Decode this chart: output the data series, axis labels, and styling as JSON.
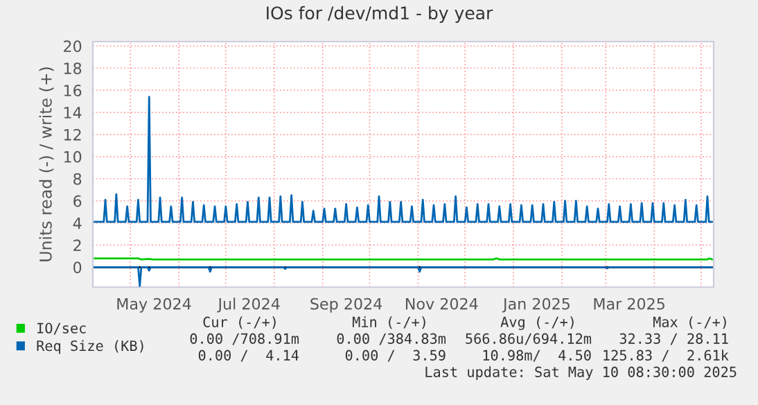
{
  "chart_data": {
    "type": "line",
    "title": "IOs for /dev/md1 - by year",
    "ylabel": "Units read (-) / write (+)",
    "xlim": [
      "2024-04-07",
      "2025-05-09"
    ],
    "ylim": [
      -1.8,
      20.4
    ],
    "yticks": [
      0,
      2,
      4,
      6,
      8,
      10,
      12,
      14,
      16,
      18,
      20
    ],
    "xticks": [
      {
        "value": "2024-05-01",
        "label": null
      },
      {
        "value": "2024-05-16",
        "label": "May 2024"
      },
      {
        "value": "2024-06-01",
        "label": null
      },
      {
        "value": "2024-07-01",
        "label": null
      },
      {
        "value": "2024-07-16",
        "label": "Jul 2024"
      },
      {
        "value": "2024-08-01",
        "label": null
      },
      {
        "value": "2024-09-01",
        "label": null
      },
      {
        "value": "2024-09-16",
        "label": "Sep 2024"
      },
      {
        "value": "2024-10-01",
        "label": null
      },
      {
        "value": "2024-11-01",
        "label": null
      },
      {
        "value": "2024-11-16",
        "label": "Nov 2024"
      },
      {
        "value": "2024-12-01",
        "label": null
      },
      {
        "value": "2025-01-01",
        "label": null
      },
      {
        "value": "2025-01-16",
        "label": "Jan 2025"
      },
      {
        "value": "2025-02-01",
        "label": null
      },
      {
        "value": "2025-03-01",
        "label": null
      },
      {
        "value": "2025-03-16",
        "label": "Mar 2025"
      },
      {
        "value": "2025-04-01",
        "label": null
      },
      {
        "value": "2025-05-01",
        "label": null
      }
    ],
    "grid": true,
    "legend": "bottom left",
    "marker": "none",
    "line_style": "solid",
    "ref_lines": [
      {
        "axis": "y",
        "value": 0,
        "color": "#000000"
      }
    ],
    "series": [
      {
        "color": "#0066b3",
        "x": [
          "2024-04-08",
          "2024-05-06",
          "2024-05-07",
          "2024-05-08",
          "2024-05-12",
          "2024-05-13",
          "2024-05-14",
          "2024-06-20",
          "2024-06-21",
          "2024-06-22",
          "2024-08-07",
          "2024-08-08",
          "2024-08-09",
          "2024-11-01",
          "2024-11-02",
          "2024-11-03",
          "2025-03-01",
          "2025-03-02",
          "2025-03-03",
          "2025-05-08"
        ],
        "values": [
          0,
          0,
          -1.7,
          0,
          0,
          -0.3,
          0,
          0,
          -0.4,
          0,
          0,
          -0.15,
          0,
          0,
          -0.4,
          0,
          0,
          -0.1,
          0,
          0
        ]
      },
      {
        "name": "IO/sec",
        "color": "#00cc00",
        "x": [
          "2024-04-08",
          "2024-05-06",
          "2024-05-08",
          "2024-05-13",
          "2024-05-15",
          "2024-12-19",
          "2024-12-21",
          "2024-12-23",
          "2025-05-05",
          "2025-05-06",
          "2025-05-08"
        ],
        "values": [
          0.8,
          0.8,
          0.7,
          0.75,
          0.7,
          0.7,
          0.8,
          0.7,
          0.7,
          0.8,
          0.7
        ]
      },
      {
        "name": "Req Size (KB)",
        "color": "#0066b3",
        "x": [
          "2024-04-08",
          "2024-04-14",
          "2024-04-15",
          "2024-04-16",
          "2024-04-21",
          "2024-04-22",
          "2024-04-23",
          "2024-04-28",
          "2024-04-29",
          "2024-04-30",
          "2024-05-05",
          "2024-05-06",
          "2024-05-07",
          "2024-05-12",
          "2024-05-13",
          "2024-05-14",
          "2024-05-19",
          "2024-05-20",
          "2024-05-21",
          "2024-05-26",
          "2024-05-27",
          "2024-05-28",
          "2024-06-02",
          "2024-06-03",
          "2024-06-04",
          "2024-06-09",
          "2024-06-10",
          "2024-06-11",
          "2024-06-16",
          "2024-06-17",
          "2024-06-18",
          "2024-06-23",
          "2024-06-24",
          "2024-06-25",
          "2024-06-30",
          "2024-07-01",
          "2024-07-02",
          "2024-07-07",
          "2024-07-08",
          "2024-07-09",
          "2024-07-14",
          "2024-07-15",
          "2024-07-16",
          "2024-07-21",
          "2024-07-22",
          "2024-07-23",
          "2024-07-28",
          "2024-07-29",
          "2024-07-30",
          "2024-08-04",
          "2024-08-05",
          "2024-08-06",
          "2024-08-11",
          "2024-08-12",
          "2024-08-13",
          "2024-08-18",
          "2024-08-19",
          "2024-08-20",
          "2024-08-25",
          "2024-08-26",
          "2024-08-27",
          "2024-09-01",
          "2024-09-02",
          "2024-09-03",
          "2024-09-08",
          "2024-09-09",
          "2024-09-10",
          "2024-09-15",
          "2024-09-16",
          "2024-09-17",
          "2024-09-22",
          "2024-09-23",
          "2024-09-24",
          "2024-09-29",
          "2024-09-30",
          "2024-10-01",
          "2024-10-06",
          "2024-10-07",
          "2024-10-08",
          "2024-10-13",
          "2024-10-14",
          "2024-10-15",
          "2024-10-20",
          "2024-10-21",
          "2024-10-22",
          "2024-10-27",
          "2024-10-28",
          "2024-10-29",
          "2024-11-03",
          "2024-11-04",
          "2024-11-05",
          "2024-11-10",
          "2024-11-11",
          "2024-11-12",
          "2024-11-17",
          "2024-11-18",
          "2024-11-19",
          "2024-11-24",
          "2024-11-25",
          "2024-11-26",
          "2024-12-01",
          "2024-12-02",
          "2024-12-03",
          "2024-12-08",
          "2024-12-09",
          "2024-12-10",
          "2024-12-15",
          "2024-12-16",
          "2024-12-17",
          "2024-12-22",
          "2024-12-23",
          "2024-12-24",
          "2024-12-29",
          "2024-12-30",
          "2024-12-31",
          "2025-01-05",
          "2025-01-06",
          "2025-01-07",
          "2025-01-12",
          "2025-01-13",
          "2025-01-14",
          "2025-01-19",
          "2025-01-20",
          "2025-01-21",
          "2025-01-26",
          "2025-01-27",
          "2025-01-28",
          "2025-02-02",
          "2025-02-03",
          "2025-02-04",
          "2025-02-09",
          "2025-02-10",
          "2025-02-11",
          "2025-02-16",
          "2025-02-17",
          "2025-02-18",
          "2025-02-23",
          "2025-02-24",
          "2025-02-25",
          "2025-03-02",
          "2025-03-03",
          "2025-03-04",
          "2025-03-09",
          "2025-03-10",
          "2025-03-11",
          "2025-03-16",
          "2025-03-17",
          "2025-03-18",
          "2025-03-23",
          "2025-03-24",
          "2025-03-25",
          "2025-03-30",
          "2025-03-31",
          "2025-04-01",
          "2025-04-06",
          "2025-04-07",
          "2025-04-08",
          "2025-04-13",
          "2025-04-14",
          "2025-04-15",
          "2025-04-20",
          "2025-04-21",
          "2025-04-22",
          "2025-04-27",
          "2025-04-28",
          "2025-04-29",
          "2025-05-04",
          "2025-05-05",
          "2025-05-06",
          "2025-05-08"
        ],
        "values": [
          4.1,
          4.1,
          6.1,
          4.1,
          4.1,
          6.6,
          4.1,
          4.1,
          5.5,
          4.1,
          4.1,
          6.1,
          4.1,
          4.1,
          15.4,
          4.1,
          4.1,
          6.3,
          4.1,
          4.1,
          5.5,
          4.1,
          4.1,
          6.3,
          4.1,
          4.1,
          5.9,
          4.1,
          4.1,
          5.6,
          4.1,
          4.1,
          5.5,
          4.1,
          4.1,
          5.5,
          4.1,
          4.1,
          5.7,
          4.1,
          4.1,
          5.9,
          4.1,
          4.1,
          6.3,
          4.1,
          4.1,
          6.3,
          4.1,
          4.1,
          6.4,
          4.1,
          4.1,
          6.5,
          4.1,
          4.1,
          5.9,
          4.1,
          4.1,
          5.1,
          4.1,
          4.1,
          5.3,
          4.1,
          4.1,
          5.3,
          4.1,
          4.1,
          5.7,
          4.1,
          4.1,
          5.4,
          4.1,
          4.1,
          5.6,
          4.1,
          4.1,
          6.4,
          4.1,
          4.1,
          5.9,
          4.1,
          4.1,
          5.9,
          4.1,
          4.1,
          5.5,
          4.1,
          4.1,
          6.1,
          4.1,
          4.1,
          5.6,
          4.1,
          4.1,
          5.7,
          4.1,
          4.1,
          6.4,
          4.1,
          4.1,
          5.4,
          4.1,
          4.1,
          5.7,
          4.1,
          4.1,
          5.7,
          4.1,
          4.1,
          5.5,
          4.1,
          4.1,
          5.7,
          4.1,
          4.1,
          5.6,
          4.1,
          4.1,
          5.6,
          4.1,
          4.1,
          5.7,
          4.1,
          4.1,
          5.9,
          4.1,
          4.1,
          6.0,
          4.1,
          4.1,
          6.0,
          4.1,
          4.1,
          5.5,
          4.1,
          4.1,
          5.3,
          4.1,
          4.1,
          5.7,
          4.1,
          4.1,
          5.5,
          4.1,
          4.1,
          5.7,
          4.1,
          4.1,
          5.8,
          4.1,
          4.1,
          5.8,
          4.1,
          4.1,
          5.8,
          4.1,
          4.1,
          5.6,
          4.1,
          4.1,
          6.1,
          4.1,
          4.1,
          5.6,
          4.1,
          4.1,
          6.4,
          4.1,
          4.1
        ]
      }
    ],
    "annotations": [
      "Cur (-/+)",
      "Min (-/+)",
      "Avg (-/+)",
      "Max (-/+)",
      "0.00 /708.91m",
      "0.00 /384.83m",
      "566.86u/694.12m",
      "32.33 / 28.11",
      "0.00 /  4.14",
      "0.00 /  3.59",
      "10.98m/  4.50",
      "125.83 /  2.61k",
      "Last update: Sat May 10 08:30:00 2025"
    ]
  }
}
